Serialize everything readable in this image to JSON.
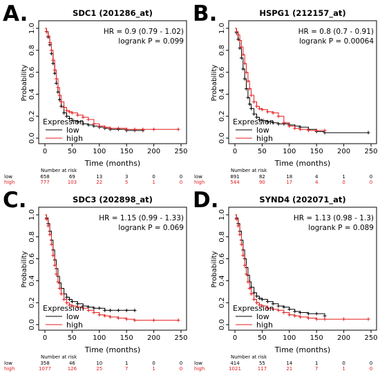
{
  "colors": {
    "low": "#000000",
    "high": "#e41a1c",
    "axis": "#000000"
  },
  "chart_data": [
    {
      "type": "line",
      "panel_label": "A.",
      "title": "SDC1 (201286_at)",
      "xlabel": "Time (months)",
      "ylabel": "Probability",
      "xlim": [
        0,
        250
      ],
      "ylim": [
        0,
        1.0
      ],
      "xticks": [
        "0",
        "50",
        "100",
        "150",
        "200",
        "250"
      ],
      "yticks": [
        "0.0",
        "0.2",
        "0.4",
        "0.6",
        "0.8",
        "1.0"
      ],
      "stats": [
        "HR = 0.9 (0.79 - 1.02)",
        "logrank P = 0.099"
      ],
      "legend_title": "Expression",
      "legend_position": "bottom-left",
      "series": [
        {
          "name": "low",
          "color": "#000000",
          "x": [
            0,
            3,
            6,
            9,
            12,
            15,
            18,
            21,
            24,
            27,
            30,
            35,
            40,
            45,
            50,
            60,
            70,
            80,
            90,
            100,
            110,
            120,
            135,
            150,
            165,
            180
          ],
          "y": [
            1.0,
            0.97,
            0.92,
            0.85,
            0.77,
            0.68,
            0.59,
            0.5,
            0.42,
            0.35,
            0.29,
            0.23,
            0.2,
            0.18,
            0.16,
            0.15,
            0.13,
            0.12,
            0.11,
            0.1,
            0.09,
            0.08,
            0.08,
            0.07,
            0.07,
            0.07
          ]
        },
        {
          "name": "high",
          "color": "#e41a1c",
          "x": [
            0,
            3,
            6,
            9,
            12,
            15,
            18,
            21,
            24,
            27,
            30,
            35,
            40,
            45,
            50,
            60,
            70,
            80,
            90,
            100,
            110,
            120,
            135,
            150,
            165,
            180,
            200,
            245
          ],
          "y": [
            1.0,
            0.97,
            0.93,
            0.87,
            0.8,
            0.71,
            0.62,
            0.54,
            0.46,
            0.39,
            0.33,
            0.28,
            0.25,
            0.24,
            0.23,
            0.21,
            0.19,
            0.17,
            0.13,
            0.11,
            0.1,
            0.09,
            0.09,
            0.08,
            0.08,
            0.08,
            0.08,
            0.08
          ]
        }
      ],
      "risk_table": {
        "title": "Number at risk",
        "rows": [
          {
            "name": "low",
            "values": [
              "658",
              "69",
              "13",
              "3",
              "0",
              "0"
            ]
          },
          {
            "name": "high",
            "values": [
              "777",
              "103",
              "22",
              "5",
              "1",
              "0"
            ]
          }
        ]
      }
    },
    {
      "type": "line",
      "panel_label": "B.",
      "title": "HSPG1 (212157_at)",
      "xlabel": "Time (months)",
      "ylabel": "Probability",
      "xlim": [
        0,
        250
      ],
      "ylim": [
        0,
        1.0
      ],
      "xticks": [
        "0",
        "50",
        "100",
        "150",
        "200",
        "250"
      ],
      "yticks": [
        "0.0",
        "0.2",
        "0.4",
        "0.6",
        "0.8",
        "1.0"
      ],
      "stats": [
        "HR = 0.8 (0.7 - 0.91)",
        "logrank P = 0.00064"
      ],
      "legend_title": "Expression",
      "legend_position": "bottom-left",
      "series": [
        {
          "name": "low",
          "color": "#000000",
          "x": [
            0,
            3,
            6,
            9,
            12,
            15,
            18,
            21,
            24,
            27,
            30,
            35,
            40,
            45,
            50,
            60,
            70,
            80,
            90,
            100,
            110,
            120,
            135,
            150,
            165,
            245
          ],
          "y": [
            1.0,
            0.96,
            0.9,
            0.82,
            0.73,
            0.63,
            0.54,
            0.45,
            0.37,
            0.31,
            0.27,
            0.22,
            0.19,
            0.17,
            0.16,
            0.15,
            0.14,
            0.13,
            0.13,
            0.12,
            0.11,
            0.1,
            0.08,
            0.06,
            0.05,
            0.05
          ]
        },
        {
          "name": "high",
          "color": "#e41a1c",
          "x": [
            0,
            3,
            6,
            9,
            12,
            15,
            18,
            21,
            24,
            27,
            30,
            35,
            40,
            45,
            50,
            60,
            70,
            80,
            90,
            100,
            110,
            120,
            135,
            150,
            165
          ],
          "y": [
            1.0,
            0.97,
            0.94,
            0.89,
            0.83,
            0.76,
            0.68,
            0.6,
            0.52,
            0.45,
            0.39,
            0.33,
            0.29,
            0.27,
            0.26,
            0.24,
            0.23,
            0.2,
            0.14,
            0.11,
            0.09,
            0.08,
            0.07,
            0.07,
            0.07
          ]
        }
      ],
      "risk_table": {
        "title": "Number at risk",
        "rows": [
          {
            "name": "low",
            "values": [
              "891",
              "82",
              "18",
              "4",
              "1",
              "0"
            ]
          },
          {
            "name": "high",
            "values": [
              "544",
              "90",
              "17",
              "4",
              "0",
              "0"
            ]
          }
        ]
      }
    },
    {
      "type": "line",
      "panel_label": "C.",
      "title": "SDC3 (202898_at)",
      "xlabel": "Time (months)",
      "ylabel": "Probability",
      "xlim": [
        0,
        250
      ],
      "ylim": [
        0,
        1.0
      ],
      "xticks": [
        "0",
        "50",
        "100",
        "150",
        "200",
        "250"
      ],
      "yticks": [
        "0.0",
        "0.2",
        "0.4",
        "0.6",
        "0.8",
        "1.0"
      ],
      "stats": [
        "HR = 1.15 (0.99 - 1.33)",
        "logrank P = 0.069"
      ],
      "legend_title": "Expression",
      "legend_position": "bottom-left",
      "series": [
        {
          "name": "low",
          "color": "#000000",
          "x": [
            0,
            3,
            6,
            9,
            12,
            15,
            18,
            21,
            24,
            27,
            30,
            35,
            40,
            45,
            50,
            60,
            70,
            80,
            90,
            100,
            110,
            120,
            135,
            150,
            165
          ],
          "y": [
            1.0,
            0.97,
            0.92,
            0.85,
            0.77,
            0.68,
            0.59,
            0.51,
            0.44,
            0.38,
            0.33,
            0.28,
            0.25,
            0.23,
            0.21,
            0.19,
            0.17,
            0.16,
            0.15,
            0.15,
            0.13,
            0.13,
            0.13,
            0.13,
            0.13
          ]
        },
        {
          "name": "high",
          "color": "#e41a1c",
          "x": [
            0,
            3,
            6,
            9,
            12,
            15,
            18,
            21,
            24,
            27,
            30,
            35,
            40,
            45,
            50,
            60,
            70,
            80,
            90,
            100,
            110,
            120,
            135,
            150,
            165,
            200,
            245
          ],
          "y": [
            1.0,
            0.96,
            0.9,
            0.82,
            0.73,
            0.63,
            0.54,
            0.46,
            0.39,
            0.33,
            0.28,
            0.23,
            0.2,
            0.18,
            0.17,
            0.16,
            0.15,
            0.13,
            0.11,
            0.09,
            0.08,
            0.07,
            0.06,
            0.05,
            0.04,
            0.04,
            0.04
          ]
        }
      ],
      "risk_table": {
        "title": "Number at risk",
        "rows": [
          {
            "name": "low",
            "values": [
              "358",
              "46",
              "10",
              "1",
              "0",
              "0"
            ]
          },
          {
            "name": "high",
            "values": [
              "1077",
              "126",
              "25",
              "7",
              "1",
              "0"
            ]
          }
        ]
      }
    },
    {
      "type": "line",
      "panel_label": "D.",
      "title": "SYND4 (202071_at)",
      "xlabel": "Time (months)",
      "ylabel": "Probability",
      "xlim": [
        0,
        250
      ],
      "ylim": [
        0,
        1.0
      ],
      "xticks": [
        "0",
        "50",
        "100",
        "150",
        "200",
        "250"
      ],
      "yticks": [
        "0.0",
        "0.2",
        "0.4",
        "0.6",
        "0.8",
        "1.0"
      ],
      "stats": [
        "HR = 1.13 (0.98 - 1.3)",
        "logrank P = 0.089"
      ],
      "legend_title": "Expression",
      "legend_position": "bottom-left",
      "series": [
        {
          "name": "low",
          "color": "#000000",
          "x": [
            0,
            3,
            6,
            9,
            12,
            15,
            18,
            21,
            24,
            27,
            30,
            35,
            40,
            45,
            50,
            60,
            70,
            80,
            90,
            100,
            110,
            120,
            135,
            150,
            165
          ],
          "y": [
            1.0,
            0.97,
            0.92,
            0.85,
            0.77,
            0.68,
            0.6,
            0.52,
            0.45,
            0.39,
            0.34,
            0.29,
            0.26,
            0.24,
            0.23,
            0.21,
            0.19,
            0.17,
            0.16,
            0.14,
            0.12,
            0.11,
            0.1,
            0.1,
            0.08
          ]
        },
        {
          "name": "high",
          "color": "#e41a1c",
          "x": [
            0,
            3,
            6,
            9,
            12,
            15,
            18,
            21,
            24,
            27,
            30,
            35,
            40,
            45,
            50,
            60,
            70,
            80,
            90,
            100,
            110,
            120,
            135,
            150,
            165,
            200,
            245
          ],
          "y": [
            1.0,
            0.96,
            0.9,
            0.82,
            0.73,
            0.63,
            0.54,
            0.46,
            0.39,
            0.33,
            0.28,
            0.23,
            0.2,
            0.18,
            0.17,
            0.15,
            0.14,
            0.13,
            0.11,
            0.09,
            0.08,
            0.07,
            0.06,
            0.05,
            0.05,
            0.05,
            0.05
          ]
        }
      ],
      "risk_table": {
        "title": "Number at risk",
        "rows": [
          {
            "name": "low",
            "values": [
              "414",
              "55",
              "14",
              "1",
              "0",
              "0"
            ]
          },
          {
            "name": "high",
            "values": [
              "1021",
              "117",
              "21",
              "7",
              "1",
              "0"
            ]
          }
        ]
      }
    }
  ]
}
